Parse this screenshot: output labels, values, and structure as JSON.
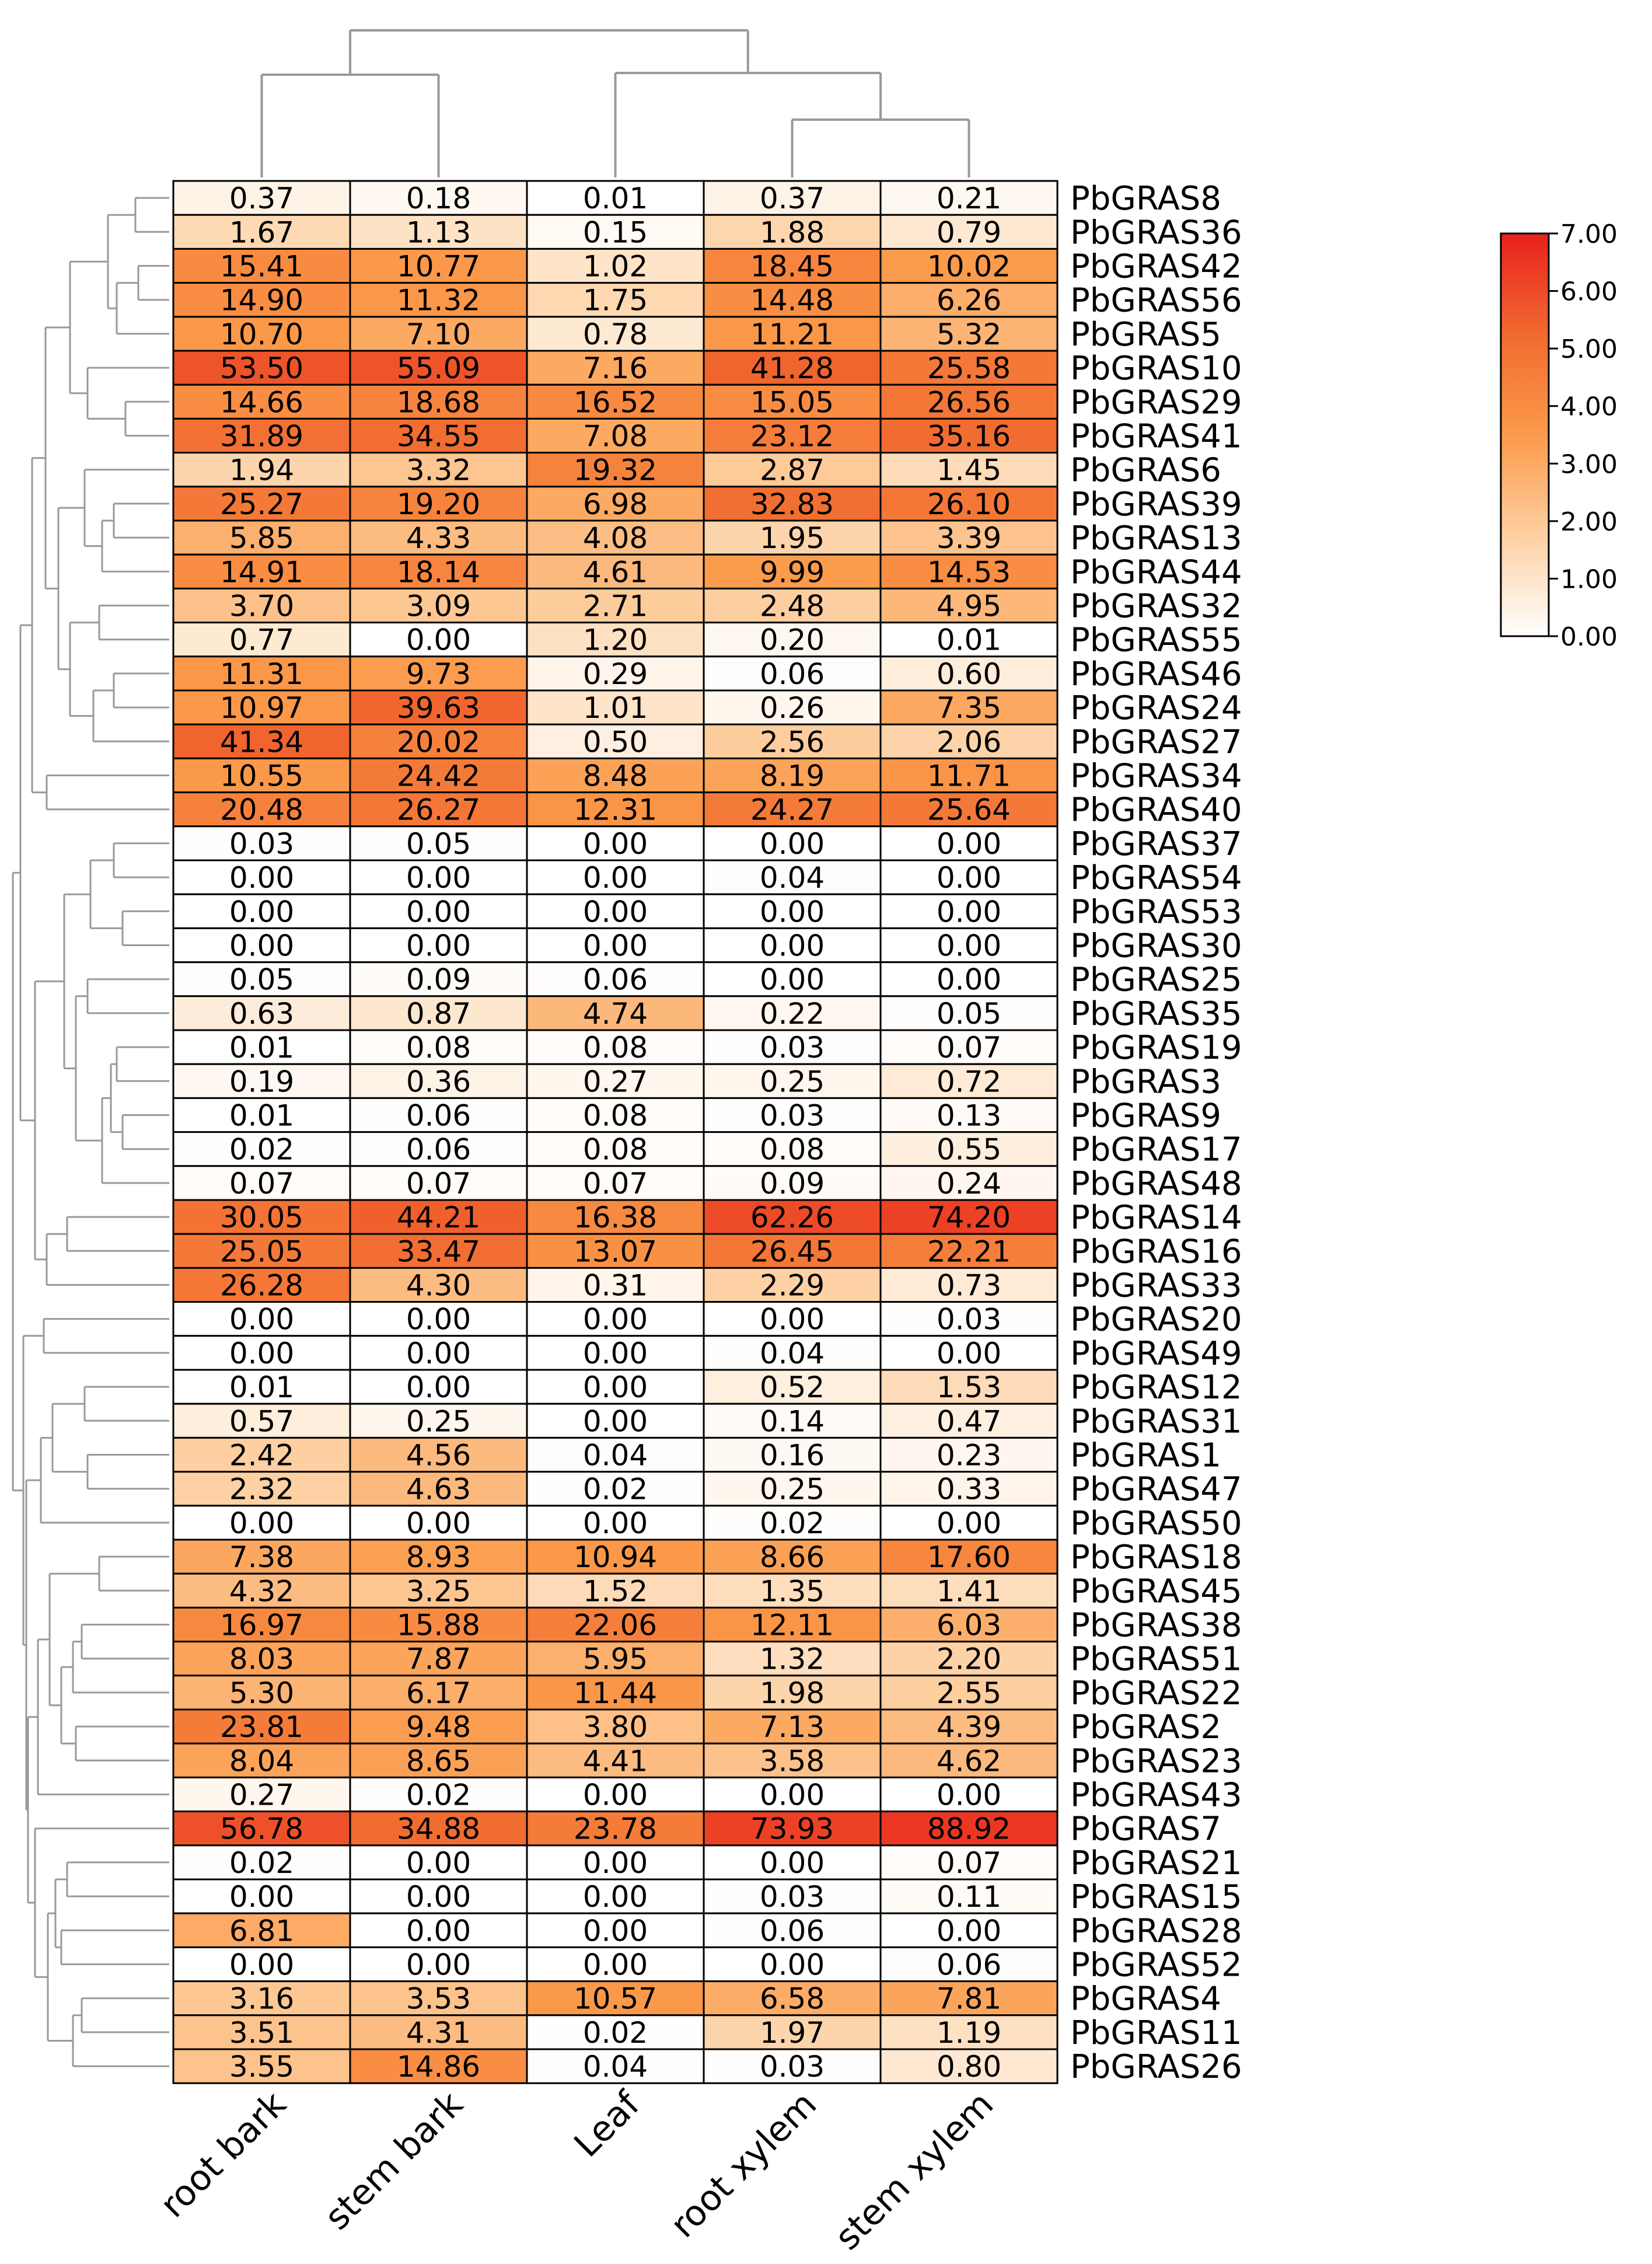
{
  "chart_data": {
    "type": "heatmap",
    "title": "",
    "columns": [
      "root bark",
      "stem bark",
      "Leaf",
      "root xylem",
      "stem xylem"
    ],
    "rows": [
      {
        "label": "PbGRAS8",
        "values": [
          "0.37",
          "0.18",
          "0.01",
          "0.37",
          "0.21"
        ]
      },
      {
        "label": "PbGRAS36",
        "values": [
          "1.67",
          "1.13",
          "0.15",
          "1.88",
          "0.79"
        ]
      },
      {
        "label": "PbGRAS42",
        "values": [
          "15.41",
          "10.77",
          "1.02",
          "18.45",
          "10.02"
        ]
      },
      {
        "label": "PbGRAS56",
        "values": [
          "14.90",
          "11.32",
          "1.75",
          "14.48",
          "6.26"
        ]
      },
      {
        "label": "PbGRAS5",
        "values": [
          "10.70",
          "7.10",
          "0.78",
          "11.21",
          "5.32"
        ]
      },
      {
        "label": "PbGRAS10",
        "values": [
          "53.50",
          "55.09",
          "7.16",
          "41.28",
          "25.58"
        ]
      },
      {
        "label": "PbGRAS29",
        "values": [
          "14.66",
          "18.68",
          "16.52",
          "15.05",
          "26.56"
        ]
      },
      {
        "label": "PbGRAS41",
        "values": [
          "31.89",
          "34.55",
          "7.08",
          "23.12",
          "35.16"
        ]
      },
      {
        "label": "PbGRAS6",
        "values": [
          "1.94",
          "3.32",
          "19.32",
          "2.87",
          "1.45"
        ]
      },
      {
        "label": "PbGRAS39",
        "values": [
          "25.27",
          "19.20",
          "6.98",
          "32.83",
          "26.10"
        ]
      },
      {
        "label": "PbGRAS13",
        "values": [
          "5.85",
          "4.33",
          "4.08",
          "1.95",
          "3.39"
        ]
      },
      {
        "label": "PbGRAS44",
        "values": [
          "14.91",
          "18.14",
          "4.61",
          "9.99",
          "14.53"
        ]
      },
      {
        "label": "PbGRAS32",
        "values": [
          "3.70",
          "3.09",
          "2.71",
          "2.48",
          "4.95"
        ]
      },
      {
        "label": "PbGRAS55",
        "values": [
          "0.77",
          "0.00",
          "1.20",
          "0.20",
          "0.01"
        ]
      },
      {
        "label": "PbGRAS46",
        "values": [
          "11.31",
          "9.73",
          "0.29",
          "0.06",
          "0.60"
        ]
      },
      {
        "label": "PbGRAS24",
        "values": [
          "10.97",
          "39.63",
          "1.01",
          "0.26",
          "7.35"
        ]
      },
      {
        "label": "PbGRAS27",
        "values": [
          "41.34",
          "20.02",
          "0.50",
          "2.56",
          "2.06"
        ]
      },
      {
        "label": "PbGRAS34",
        "values": [
          "10.55",
          "24.42",
          "8.48",
          "8.19",
          "11.71"
        ]
      },
      {
        "label": "PbGRAS40",
        "values": [
          "20.48",
          "26.27",
          "12.31",
          "24.27",
          "25.64"
        ]
      },
      {
        "label": "PbGRAS37",
        "values": [
          "0.03",
          "0.05",
          "0.00",
          "0.00",
          "0.00"
        ]
      },
      {
        "label": "PbGRAS54",
        "values": [
          "0.00",
          "0.00",
          "0.00",
          "0.04",
          "0.00"
        ]
      },
      {
        "label": "PbGRAS53",
        "values": [
          "0.00",
          "0.00",
          "0.00",
          "0.00",
          "0.00"
        ]
      },
      {
        "label": "PbGRAS30",
        "values": [
          "0.00",
          "0.00",
          "0.00",
          "0.00",
          "0.00"
        ]
      },
      {
        "label": "PbGRAS25",
        "values": [
          "0.05",
          "0.09",
          "0.06",
          "0.00",
          "0.00"
        ]
      },
      {
        "label": "PbGRAS35",
        "values": [
          "0.63",
          "0.87",
          "4.74",
          "0.22",
          "0.05"
        ]
      },
      {
        "label": "PbGRAS19",
        "values": [
          "0.01",
          "0.08",
          "0.08",
          "0.03",
          "0.07"
        ]
      },
      {
        "label": "PbGRAS3",
        "values": [
          "0.19",
          "0.36",
          "0.27",
          "0.25",
          "0.72"
        ]
      },
      {
        "label": "PbGRAS9",
        "values": [
          "0.01",
          "0.06",
          "0.08",
          "0.03",
          "0.13"
        ]
      },
      {
        "label": "PbGRAS17",
        "values": [
          "0.02",
          "0.06",
          "0.08",
          "0.08",
          "0.55"
        ]
      },
      {
        "label": "PbGRAS48",
        "values": [
          "0.07",
          "0.07",
          "0.07",
          "0.09",
          "0.24"
        ]
      },
      {
        "label": "PbGRAS14",
        "values": [
          "30.05",
          "44.21",
          "16.38",
          "62.26",
          "74.20"
        ]
      },
      {
        "label": "PbGRAS16",
        "values": [
          "25.05",
          "33.47",
          "13.07",
          "26.45",
          "22.21"
        ]
      },
      {
        "label": "PbGRAS33",
        "values": [
          "26.28",
          "4.30",
          "0.31",
          "2.29",
          "0.73"
        ]
      },
      {
        "label": "PbGRAS20",
        "values": [
          "0.00",
          "0.00",
          "0.00",
          "0.00",
          "0.03"
        ]
      },
      {
        "label": "PbGRAS49",
        "values": [
          "0.00",
          "0.00",
          "0.00",
          "0.04",
          "0.00"
        ]
      },
      {
        "label": "PbGRAS12",
        "values": [
          "0.01",
          "0.00",
          "0.00",
          "0.52",
          "1.53"
        ]
      },
      {
        "label": "PbGRAS31",
        "values": [
          "0.57",
          "0.25",
          "0.00",
          "0.14",
          "0.47"
        ]
      },
      {
        "label": "PbGRAS1",
        "values": [
          "2.42",
          "4.56",
          "0.04",
          "0.16",
          "0.23"
        ]
      },
      {
        "label": "PbGRAS47",
        "values": [
          "2.32",
          "4.63",
          "0.02",
          "0.25",
          "0.33"
        ]
      },
      {
        "label": "PbGRAS50",
        "values": [
          "0.00",
          "0.00",
          "0.00",
          "0.02",
          "0.00"
        ]
      },
      {
        "label": "PbGRAS18",
        "values": [
          "7.38",
          "8.93",
          "10.94",
          "8.66",
          "17.60"
        ]
      },
      {
        "label": "PbGRAS45",
        "values": [
          "4.32",
          "3.25",
          "1.52",
          "1.35",
          "1.41"
        ]
      },
      {
        "label": "PbGRAS38",
        "values": [
          "16.97",
          "15.88",
          "22.06",
          "12.11",
          "6.03"
        ]
      },
      {
        "label": "PbGRAS51",
        "values": [
          "8.03",
          "7.87",
          "5.95",
          "1.32",
          "2.20"
        ]
      },
      {
        "label": "PbGRAS22",
        "values": [
          "5.30",
          "6.17",
          "11.44",
          "1.98",
          "2.55"
        ]
      },
      {
        "label": "PbGRAS2",
        "values": [
          "23.81",
          "9.48",
          "3.80",
          "7.13",
          "4.39"
        ]
      },
      {
        "label": "PbGRAS23",
        "values": [
          "8.04",
          "8.65",
          "4.41",
          "3.58",
          "4.62"
        ]
      },
      {
        "label": "PbGRAS43",
        "values": [
          "0.27",
          "0.02",
          "0.00",
          "0.00",
          "0.00"
        ]
      },
      {
        "label": "PbGRAS7",
        "values": [
          "56.78",
          "34.88",
          "23.78",
          "73.93",
          "88.92"
        ]
      },
      {
        "label": "PbGRAS21",
        "values": [
          "0.02",
          "0.00",
          "0.00",
          "0.00",
          "0.07"
        ]
      },
      {
        "label": "PbGRAS15",
        "values": [
          "0.00",
          "0.00",
          "0.00",
          "0.03",
          "0.11"
        ]
      },
      {
        "label": "PbGRAS28",
        "values": [
          "6.81",
          "0.00",
          "0.00",
          "0.06",
          "0.00"
        ]
      },
      {
        "label": "PbGRAS52",
        "values": [
          "0.00",
          "0.00",
          "0.00",
          "0.00",
          "0.06"
        ]
      },
      {
        "label": "PbGRAS4",
        "values": [
          "3.16",
          "3.53",
          "10.57",
          "6.58",
          "7.81"
        ]
      },
      {
        "label": "PbGRAS11",
        "values": [
          "3.51",
          "4.31",
          "0.02",
          "1.97",
          "1.19"
        ]
      },
      {
        "label": "PbGRAS26",
        "values": [
          "3.55",
          "14.86",
          "0.04",
          "0.03",
          "0.80"
        ]
      }
    ],
    "color_scale": {
      "transform": "log2(value+1)",
      "ticks": [
        "7.00",
        "6.00",
        "5.00",
        "4.00",
        "3.00",
        "2.00",
        "1.00",
        "0.00"
      ],
      "min": 0,
      "max": 7,
      "colors": [
        "#ffffff",
        "#fdd0a2",
        "#fb9a4a",
        "#f16a30",
        "#e8211c"
      ]
    },
    "column_dendrogram": true,
    "row_dendrogram": true
  }
}
